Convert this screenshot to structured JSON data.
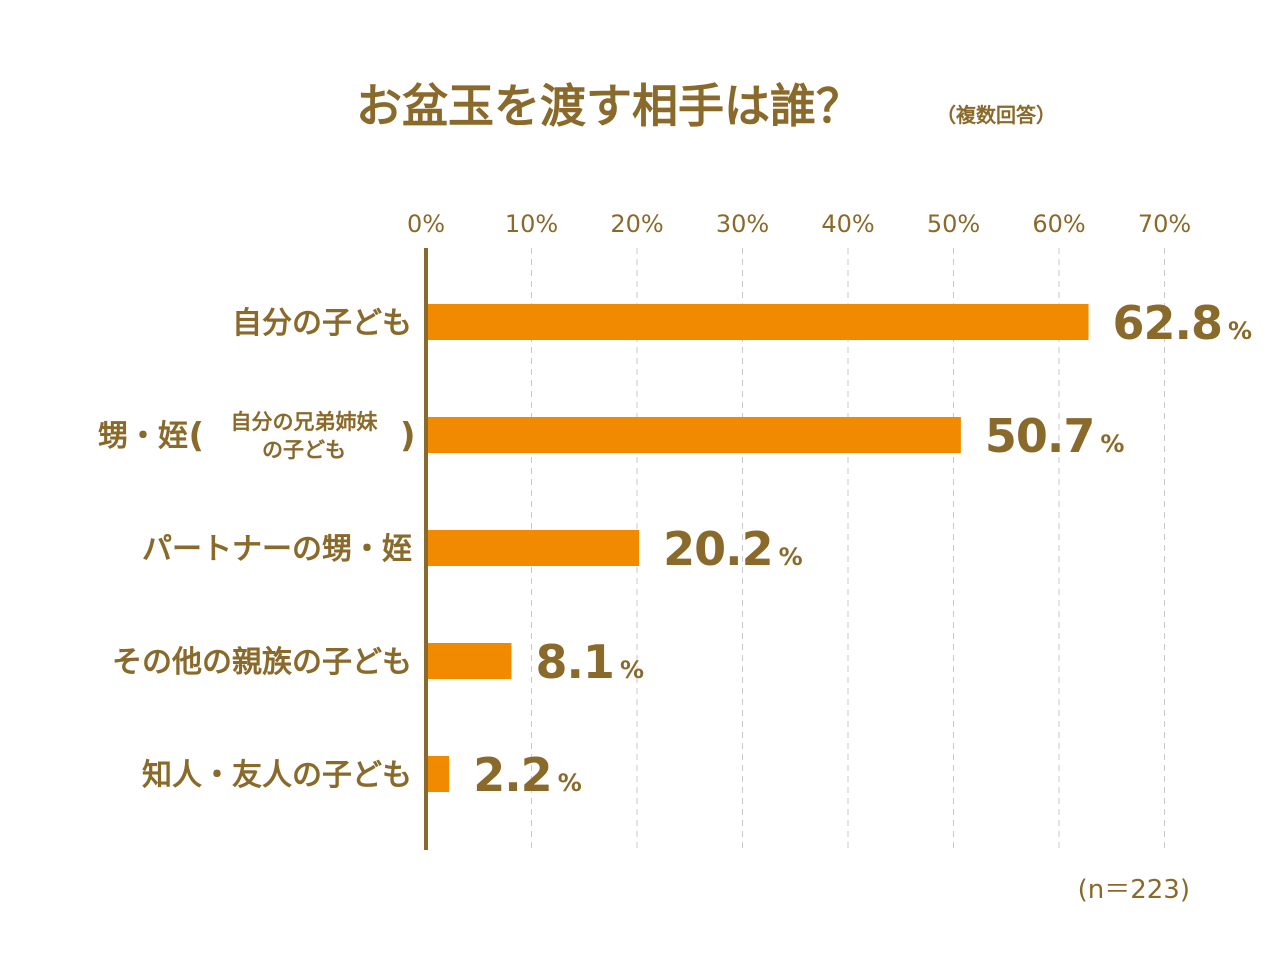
{
  "chart_data": {
    "type": "bar",
    "orientation": "horizontal",
    "title": "お盆玉を渡す相手は誰？",
    "subtitle": "（複数回答）",
    "categories": [
      "自分の子ども",
      "甥・姪（自分の兄弟姉妹の子ども）",
      "パートナーの甥・姪",
      "その他の親族の子ども",
      "知人・友人の子ども"
    ],
    "category_labels": [
      {
        "main": "自分の子ども"
      },
      {
        "main": "甥・姪",
        "open": "(",
        "sub1": "自分の兄弟姉妹",
        "sub2": "の子ども",
        "close": ")"
      },
      {
        "main": "パートナーの甥・姪"
      },
      {
        "main": "その他の親族の子ども"
      },
      {
        "main": "知人・友人の子ども"
      }
    ],
    "values": [
      62.8,
      50.7,
      20.2,
      8.1,
      2.2
    ],
    "value_unit": "%",
    "xlim": [
      0,
      70
    ],
    "x_ticks": [
      "0%",
      "10%",
      "20%",
      "30%",
      "40%",
      "50%",
      "60%",
      "70%"
    ],
    "grid": "vertical dashed",
    "note": "(n＝223)",
    "colors": {
      "bar": "#f28a00",
      "text": "#8a6a2b",
      "axis": "#8a6a2b",
      "grid": "#c8c8c8"
    }
  }
}
